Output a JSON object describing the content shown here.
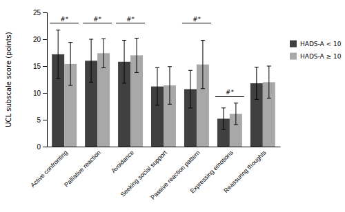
{
  "chart_data": {
    "type": "bar",
    "ylabel": "UCL subscale score (points)",
    "categories": [
      "Active confronting",
      "Palliative reaction",
      "Avoidance",
      "Seeking social support",
      "Passive reaction pattern",
      "Expressing emotions",
      "Reassuring thoughts"
    ],
    "series": [
      {
        "name": "HADS-A < 10",
        "color": "#404040",
        "values": [
          17.2,
          16.0,
          15.8,
          11.2,
          10.7,
          5.2,
          11.8
        ],
        "errors": [
          4.5,
          4.0,
          4.0,
          3.5,
          3.5,
          2.0,
          3.0
        ]
      },
      {
        "name": "HADS-A ≥ 10",
        "color": "#a8a8a8",
        "values": [
          15.4,
          17.4,
          17.0,
          11.4,
          15.3,
          6.1,
          12.0
        ],
        "errors": [
          4.0,
          2.7,
          3.2,
          3.5,
          4.5,
          2.0,
          3.0
        ]
      }
    ],
    "ylim": [
      0,
      25
    ],
    "yticks": [
      0,
      5,
      10,
      15,
      20,
      25
    ],
    "annotations": [
      {
        "text": "#*",
        "x": "Active confronting",
        "y": 23.0
      },
      {
        "text": "#*",
        "x": "Palliative reaction",
        "y": 23.0
      },
      {
        "text": "#*",
        "x": "Avoidance",
        "y": 23.0
      },
      {
        "text": "#*",
        "x": "Passive reaction pattern",
        "y": 23.0
      },
      {
        "text": "#*",
        "x": "Expressing emotions",
        "y": 9.3
      }
    ],
    "legend": "right",
    "grid": false
  }
}
